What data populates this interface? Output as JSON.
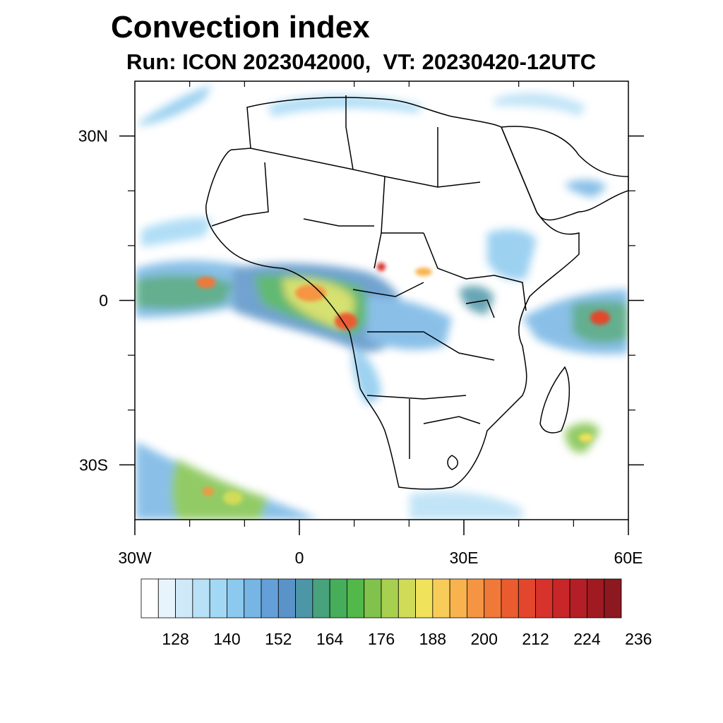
{
  "title": "Convection index",
  "subtitle": "Run: ICON 2023042000,  VT: 20230420-12UTC",
  "map": {
    "lon_range": [
      -30,
      60
    ],
    "lat_range": [
      -40,
      40
    ],
    "lon_tick_labels": [
      {
        "lon": -30,
        "text": "30W"
      },
      {
        "lon": 0,
        "text": "0"
      },
      {
        "lon": 30,
        "text": "30E"
      },
      {
        "lon": 60,
        "text": "60E"
      }
    ],
    "lat_tick_labels": [
      {
        "lat": 30,
        "text": "30N"
      },
      {
        "lat": 0,
        "text": "0"
      },
      {
        "lat": -30,
        "text": "30S"
      }
    ],
    "minor_lon_ticks": [
      -20,
      -10,
      10,
      20,
      40,
      50
    ],
    "minor_lat_ticks": [
      20,
      10,
      -10,
      -20
    ],
    "field": "convection index"
  },
  "colorbar": {
    "colors": [
      "#ffffff",
      "#e8f4fc",
      "#cfe9f8",
      "#b8e0f6",
      "#a3d8f4",
      "#8bc9ee",
      "#76b5e4",
      "#659fd9",
      "#5a93c8",
      "#4d96a8",
      "#48a27c",
      "#46ad5a",
      "#52b84a",
      "#80c24c",
      "#a8d050",
      "#d0dc58",
      "#f0e25a",
      "#f8cc58",
      "#f8b34e",
      "#f59442",
      "#f07838",
      "#ea5c30",
      "#e2462c",
      "#d8322c",
      "#c82628",
      "#b41e26",
      "#a01a22",
      "#8c1820"
    ],
    "tick_labels": [
      "128",
      "140",
      "152",
      "164",
      "176",
      "188",
      "200",
      "212",
      "224",
      "236"
    ]
  }
}
